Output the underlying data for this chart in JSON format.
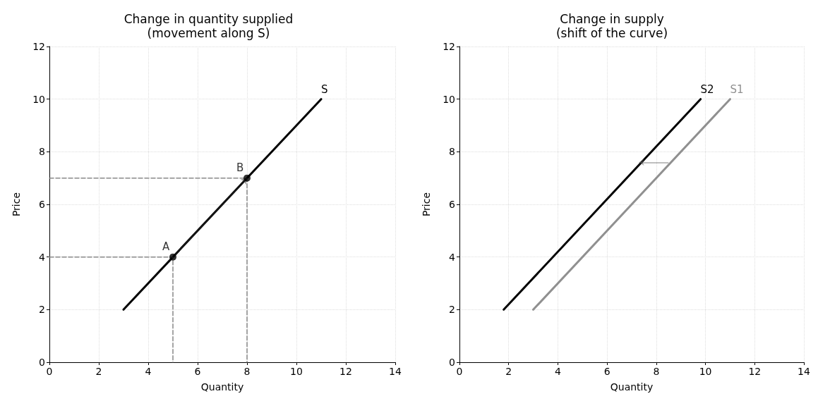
{
  "chart_data": [
    {
      "type": "line",
      "title": "Change in quantity supplied\n(movement along S)",
      "xlabel": "Quantity",
      "ylabel": "Price",
      "xlim": [
        0,
        14
      ],
      "ylim": [
        0,
        12
      ],
      "xticks": [
        0,
        2,
        4,
        6,
        8,
        10,
        12,
        14
      ],
      "yticks": [
        0,
        2,
        4,
        6,
        8,
        10,
        12
      ],
      "grid": true,
      "legend": false,
      "series": [
        {
          "name": "S",
          "color": "#000000",
          "x": [
            3,
            11
          ],
          "values": [
            2,
            10
          ],
          "marker": "none"
        },
        {
          "type": "line",
          "color": "#888888",
          "x": [
            0,
            5,
            5
          ],
          "values": [
            4,
            4,
            0
          ],
          "line_style": "dashed",
          "marker": "none"
        },
        {
          "type": "line",
          "color": "#888888",
          "x": [
            0,
            8,
            8
          ],
          "values": [
            7,
            7,
            0
          ],
          "line_style": "dashed",
          "marker": "none"
        },
        {
          "type": "scatter",
          "color": "#000000",
          "x": [
            5,
            8
          ],
          "values": [
            4,
            7
          ],
          "marker": "circle"
        }
      ],
      "annotations": [
        {
          "text": "A",
          "x": 5,
          "y": 4
        },
        {
          "text": "B",
          "x": 8,
          "y": 7
        }
      ]
    },
    {
      "type": "line",
      "title": "Change in supply\n(shift of the curve)",
      "xlabel": "Quantity",
      "ylabel": "Price",
      "xlim": [
        0,
        14
      ],
      "ylim": [
        0,
        12
      ],
      "xticks": [
        0,
        2,
        4,
        6,
        8,
        10,
        12,
        14
      ],
      "yticks": [
        0,
        2,
        4,
        6,
        8,
        10,
        12
      ],
      "grid": true,
      "legend": false,
      "series": [
        {
          "name": "S2",
          "color": "#000000",
          "x": [
            1.8,
            9.8
          ],
          "values": [
            2,
            10
          ],
          "marker": "none"
        },
        {
          "name": "S1",
          "color": "#909090",
          "x": [
            3,
            11
          ],
          "values": [
            2,
            10
          ],
          "marker": "none"
        }
      ]
    }
  ]
}
